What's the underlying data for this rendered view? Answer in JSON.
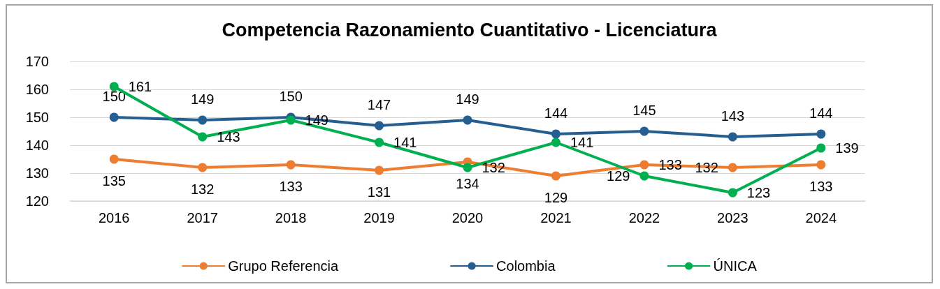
{
  "chart_data": {
    "type": "line",
    "title": "Competencia Razonamiento Cuantitativo - Licenciatura",
    "categories": [
      "2016",
      "2017",
      "2018",
      "2019",
      "2020",
      "2021",
      "2022",
      "2023",
      "2024"
    ],
    "series": [
      {
        "name": "Grupo Referencia",
        "color": "#ed7d31",
        "values": [
          135,
          132,
          133,
          131,
          134,
          129,
          133,
          132,
          133
        ]
      },
      {
        "name": "Colombia",
        "color": "#255e91",
        "values": [
          150,
          149,
          150,
          147,
          149,
          144,
          145,
          143,
          144
        ]
      },
      {
        "name": "ÚNICA",
        "color": "#00b050",
        "values": [
          161,
          143,
          149,
          141,
          132,
          141,
          129,
          123,
          139
        ]
      }
    ],
    "ylim": [
      120,
      170
    ],
    "yticks": [
      120,
      130,
      140,
      150,
      160,
      170
    ],
    "grid": "y",
    "legend": "bottom",
    "marker": "circle",
    "line_style": "solid",
    "data_labels": true
  }
}
